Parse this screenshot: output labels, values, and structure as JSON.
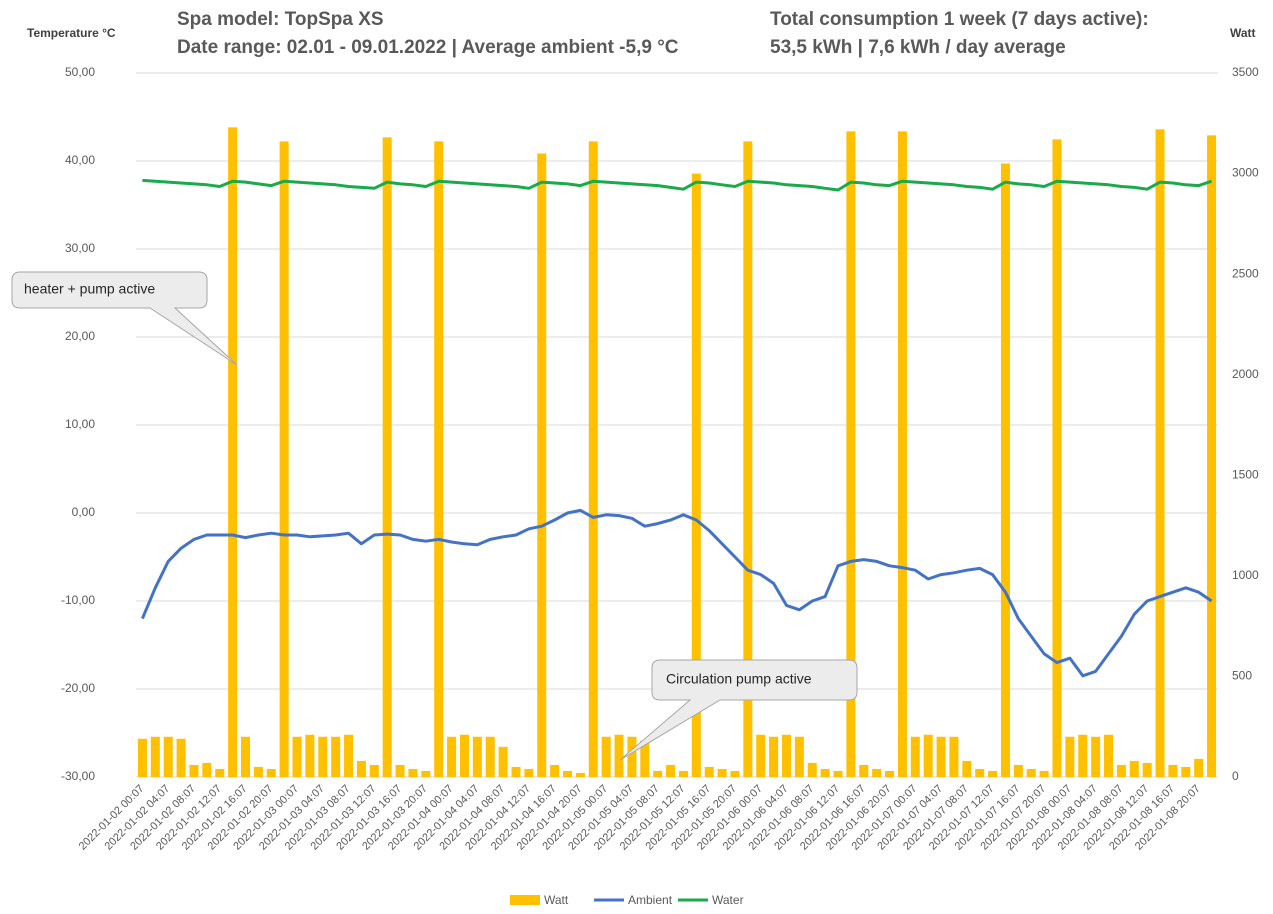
{
  "chart_data": {
    "type": "combo",
    "title": "Spa model: TopSpa XS",
    "subtitle": "Date range: 02.01 - 09.01.2022 | Average ambient -5,9 °C",
    "title_right": "Total consumption 1 week (7 days active):",
    "subtitle_right": "53,5 kWh | 7,6 kWh / day average",
    "y_label": "Temperature °C",
    "y2_label": "Watt",
    "annotations": [
      "heater + pump active",
      "Circulation pump active"
    ],
    "categories": [
      "2022-01-02 00:07",
      null,
      "2022-01-02 04:07",
      null,
      "2022-01-02 08:07",
      null,
      "2022-01-02 12:07",
      null,
      "2022-01-02 16:07",
      null,
      "2022-01-02 20:07",
      null,
      "2022-01-03 00:07",
      null,
      "2022-01-03 04:07",
      null,
      "2022-01-03 08:07",
      null,
      "2022-01-03 12:07",
      null,
      "2022-01-03 16:07",
      null,
      "2022-01-03 20:07",
      null,
      "2022-01-04 00:07",
      null,
      "2022-01-04 04:07",
      null,
      "2022-01-04 08:07",
      null,
      "2022-01-04 12:07",
      null,
      "2022-01-04 16:07",
      null,
      "2022-01-04 20:07",
      null,
      "2022-01-05 00:07",
      null,
      "2022-01-05 04:07",
      null,
      "2022-01-05 08:07",
      null,
      "2022-01-05 12:07",
      null,
      "2022-01-05 16:07",
      null,
      "2022-01-05 20:07",
      null,
      "2022-01-06 00:07",
      null,
      "2022-01-06 04:07",
      null,
      "2022-01-06 08:07",
      null,
      "2022-01-06 12:07",
      null,
      "2022-01-06 16:07",
      null,
      "2022-01-06 20:07",
      null,
      "2022-01-07 00:07",
      null,
      "2022-01-07 04:07",
      null,
      "2022-01-07 08:07",
      null,
      "2022-01-07 12:07",
      null,
      "2022-01-07 16:07",
      null,
      "2022-01-07 20:07",
      null,
      "2022-01-08 00:07",
      null,
      "2022-01-08 04:07",
      null,
      "2022-01-08 08:07",
      null,
      "2022-01-08 12:07",
      null,
      "2022-01-08 16:07",
      null,
      "2022-01-08 20:07",
      null
    ],
    "series": [
      {
        "name": "Watt",
        "type": "bar",
        "axis": "y2",
        "color": "#ffc000",
        "values": [
          190,
          200,
          200,
          190,
          60,
          70,
          40,
          3230,
          200,
          50,
          40,
          3160,
          200,
          210,
          200,
          200,
          210,
          80,
          60,
          3180,
          60,
          40,
          30,
          3160,
          200,
          210,
          200,
          200,
          150,
          50,
          40,
          3100,
          60,
          30,
          20,
          3160,
          200,
          210,
          200,
          180,
          30,
          60,
          30,
          3000,
          50,
          40,
          30,
          3160,
          210,
          200,
          210,
          200,
          70,
          40,
          30,
          3210,
          60,
          40,
          30,
          3210,
          200,
          210,
          200,
          200,
          80,
          40,
          30,
          3050,
          60,
          40,
          30,
          3170,
          200,
          210,
          200,
          210,
          60,
          80,
          70,
          3220,
          60,
          50,
          90,
          3190
        ]
      },
      {
        "name": "Ambient",
        "type": "line",
        "color": "#4472c4",
        "values": [
          -12,
          -8.5,
          -5.5,
          -4,
          -3,
          -2.5,
          -2.5,
          -2.5,
          -2.8,
          -2.5,
          -2.3,
          -2.5,
          -2.5,
          -2.7,
          -2.6,
          -2.5,
          -2.3,
          -3.5,
          -2.5,
          -2.4,
          -2.5,
          -3,
          -3.2,
          -3,
          -3.3,
          -3.5,
          -3.6,
          -3,
          -2.7,
          -2.5,
          -1.8,
          -1.5,
          -0.8,
          0,
          0.3,
          -0.5,
          -0.2,
          -0.3,
          -0.6,
          -1.5,
          -1.2,
          -0.8,
          -0.2,
          -0.8,
          -2,
          -3.5,
          -5,
          -6.5,
          -7,
          -8,
          -10.5,
          -11,
          -10,
          -9.5,
          -6,
          -5.5,
          -5.3,
          -5.5,
          -6,
          -6.2,
          -6.5,
          -7.5,
          -7,
          -6.8,
          -6.5,
          -6.3,
          -7,
          -9,
          -12,
          -14,
          -16,
          -17,
          -16.5,
          -18.5,
          -18,
          -16,
          -14,
          -11.5,
          -10,
          -9.5,
          -9,
          -8.5,
          -9,
          -10
        ]
      },
      {
        "name": "Water",
        "type": "line",
        "color": "#1aaa4a",
        "values": [
          37.8,
          37.7,
          37.6,
          37.5,
          37.4,
          37.3,
          37.1,
          37.7,
          37.6,
          37.4,
          37.2,
          37.7,
          37.6,
          37.5,
          37.4,
          37.3,
          37.1,
          37,
          36.9,
          37.6,
          37.4,
          37.3,
          37.1,
          37.7,
          37.6,
          37.5,
          37.4,
          37.3,
          37.2,
          37.1,
          36.9,
          37.6,
          37.5,
          37.4,
          37.2,
          37.7,
          37.6,
          37.5,
          37.4,
          37.3,
          37.2,
          37,
          36.8,
          37.6,
          37.5,
          37.3,
          37.1,
          37.7,
          37.6,
          37.5,
          37.3,
          37.2,
          37.1,
          36.9,
          36.7,
          37.6,
          37.5,
          37.3,
          37.2,
          37.7,
          37.6,
          37.5,
          37.4,
          37.3,
          37.1,
          37,
          36.8,
          37.6,
          37.4,
          37.3,
          37.1,
          37.7,
          37.6,
          37.5,
          37.4,
          37.3,
          37.1,
          37,
          36.8,
          37.6,
          37.5,
          37.3,
          37.2,
          37.7
        ]
      }
    ],
    "ylim": [
      -30,
      50
    ],
    "yticks": [
      {
        "value": -30,
        "label": "-30,00"
      },
      {
        "value": -20,
        "label": "-20,00"
      },
      {
        "value": -10,
        "label": "-10,00"
      },
      {
        "value": 0,
        "label": "0,00"
      },
      {
        "value": 10,
        "label": "10,00"
      },
      {
        "value": 20,
        "label": "20,00"
      },
      {
        "value": 30,
        "label": "30,00"
      },
      {
        "value": 40,
        "label": "40,00"
      },
      {
        "value": 50,
        "label": "50,00"
      }
    ],
    "y2lim": [
      0,
      3500
    ],
    "y2ticks": [
      0,
      500,
      1000,
      1500,
      2000,
      2500,
      3000,
      3500
    ],
    "grid": true,
    "legend": "bottom"
  }
}
